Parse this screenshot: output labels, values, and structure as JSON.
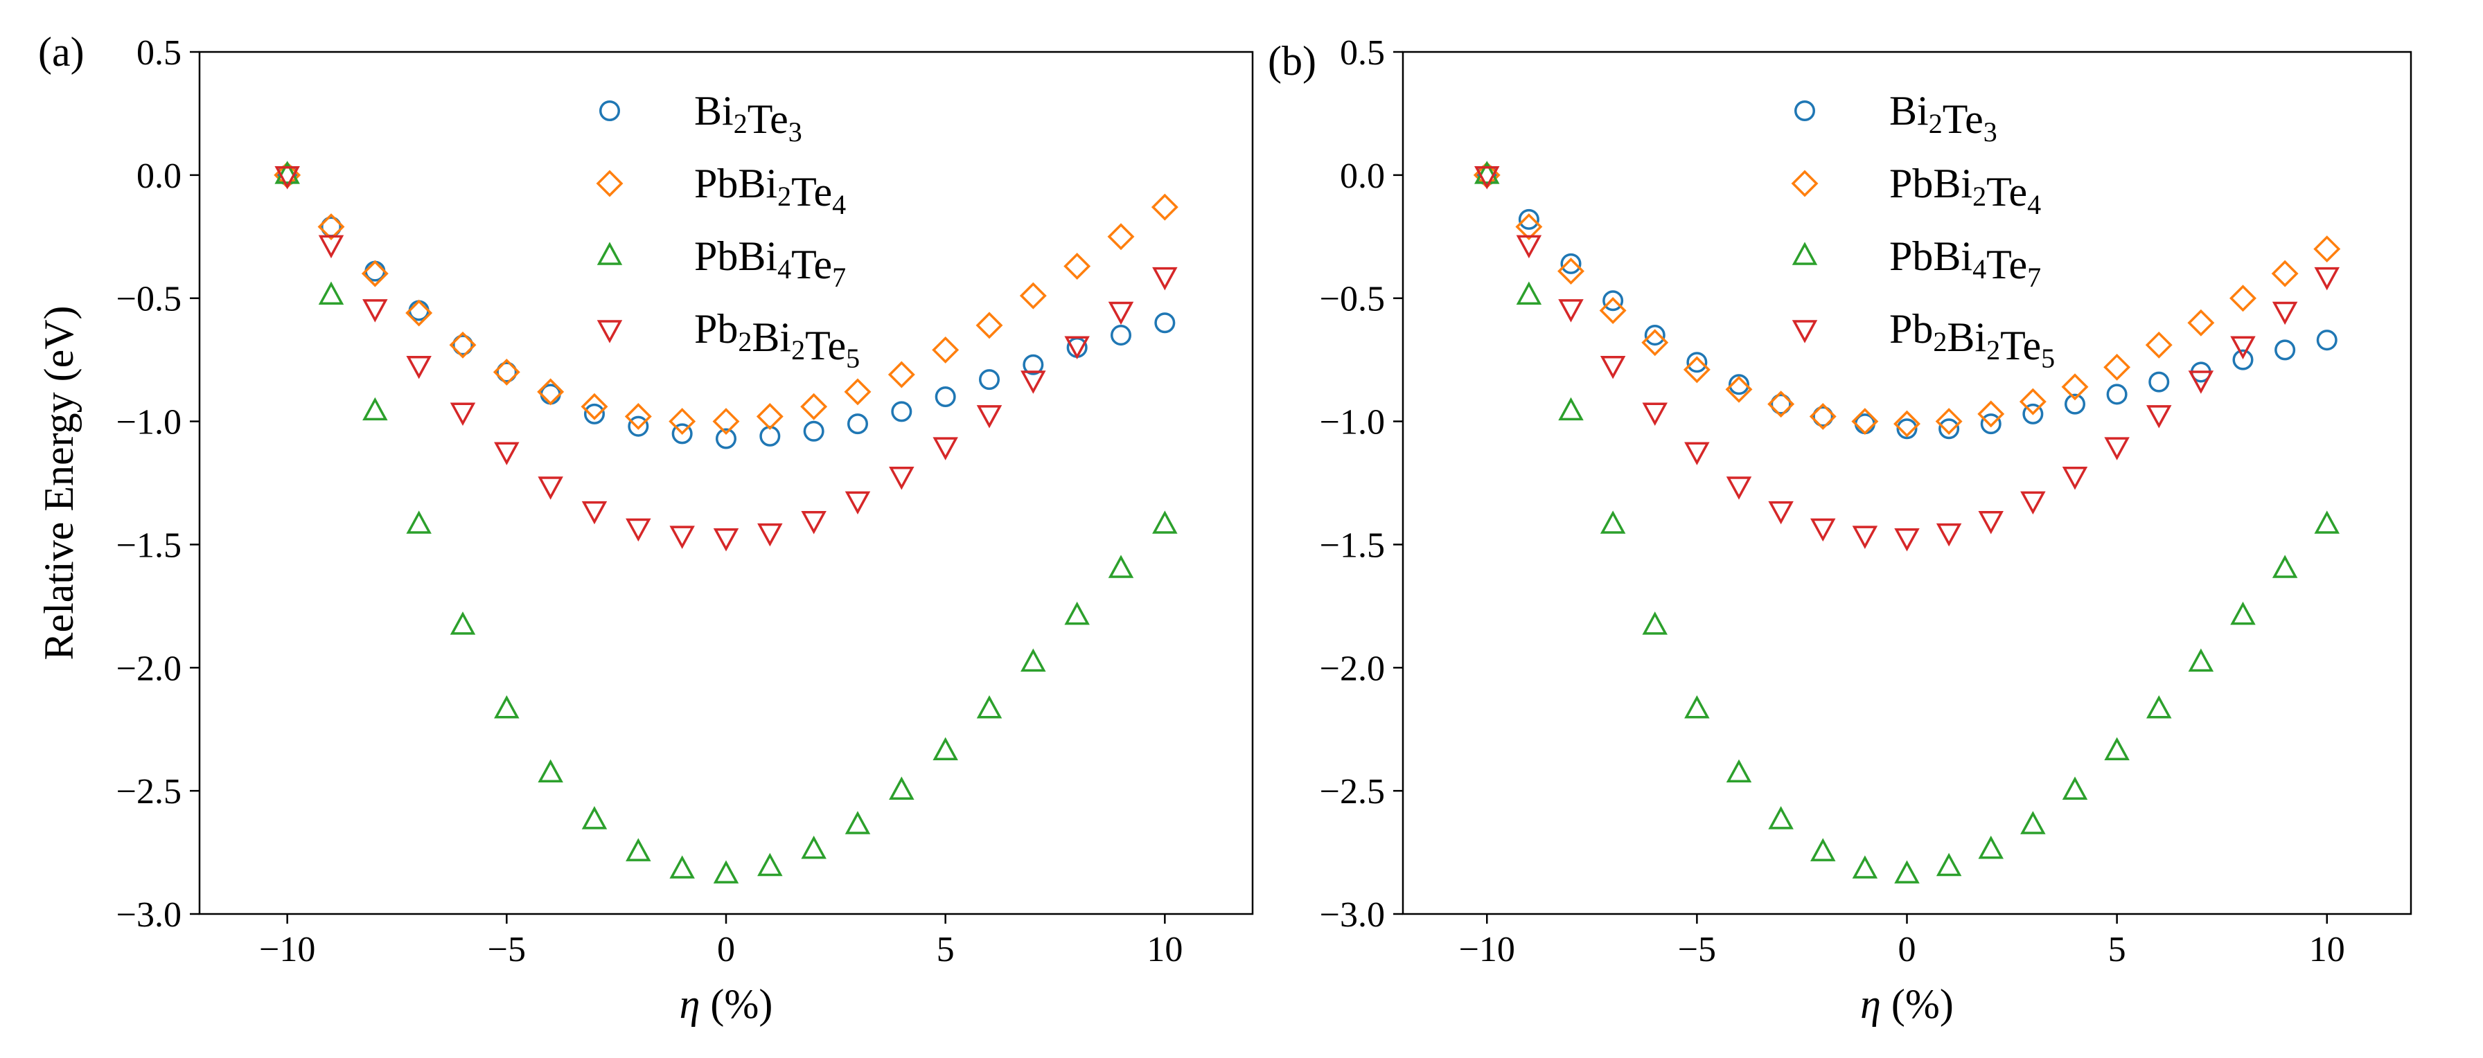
{
  "chart_data": [
    {
      "type": "scatter",
      "panel_label": "(a)",
      "xlabel_symbol": "η",
      "xlabel_unit": "(%)",
      "ylabel": "Relative Energy (eV)",
      "xlim": [
        -12,
        12
      ],
      "ylim": [
        -3.0,
        0.5
      ],
      "x_ticks": [
        -10,
        -5,
        0,
        5,
        10
      ],
      "x_tick_labels": [
        "−10",
        "−5",
        "0",
        "5",
        "10"
      ],
      "y_ticks": [
        0.5,
        0.0,
        -0.5,
        -1.0,
        -1.5,
        -2.0,
        -2.5,
        -3.0
      ],
      "y_tick_labels": [
        "0.5",
        "0.0",
        "−0.5",
        "−1.0",
        "−1.5",
        "−2.0",
        "−2.5",
        "−3.0"
      ],
      "legend_position": "top-center",
      "x": [
        -10,
        -9,
        -8,
        -7,
        -6,
        -5,
        -4,
        -3,
        -2,
        -1,
        0,
        1,
        2,
        3,
        4,
        5,
        6,
        7,
        8,
        9,
        10
      ],
      "series": [
        {
          "name": "Bi2Te3",
          "legend_parts": [
            [
              "Bi",
              ""
            ],
            [
              "2",
              "sub"
            ],
            [
              "Te",
              ""
            ],
            [
              "3",
              "sub"
            ]
          ],
          "color": "#1f77b4",
          "marker": "circle",
          "values": [
            0.0,
            -0.21,
            -0.39,
            -0.55,
            -0.69,
            -0.8,
            -0.89,
            -0.97,
            -1.02,
            -1.05,
            -1.07,
            -1.06,
            -1.04,
            -1.01,
            -0.96,
            -0.9,
            -0.83,
            -0.77,
            -0.7,
            -0.65,
            -0.6
          ]
        },
        {
          "name": "PbBi2Te4",
          "legend_parts": [
            [
              "PbBi",
              ""
            ],
            [
              "2",
              "sub"
            ],
            [
              "Te",
              ""
            ],
            [
              "4",
              "sub"
            ]
          ],
          "color": "#ff7f0e",
          "marker": "diamond",
          "values": [
            0.0,
            -0.21,
            -0.4,
            -0.56,
            -0.69,
            -0.8,
            -0.88,
            -0.94,
            -0.98,
            -1.0,
            -1.0,
            -0.98,
            -0.94,
            -0.88,
            -0.81,
            -0.71,
            -0.61,
            -0.49,
            -0.37,
            -0.25,
            -0.13
          ]
        },
        {
          "name": "PbBi4Te7",
          "legend_parts": [
            [
              "PbBi",
              ""
            ],
            [
              "4",
              "sub"
            ],
            [
              "Te",
              ""
            ],
            [
              "7",
              "sub"
            ]
          ],
          "color": "#2ca02c",
          "marker": "triangle-up",
          "values": [
            0.0,
            -0.49,
            -0.96,
            -1.42,
            -1.83,
            -2.17,
            -2.43,
            -2.62,
            -2.75,
            -2.82,
            -2.84,
            -2.81,
            -2.74,
            -2.64,
            -2.5,
            -2.34,
            -2.17,
            -1.98,
            -1.79,
            -1.6,
            -1.42
          ]
        },
        {
          "name": "Pb2Bi2Te5",
          "legend_parts": [
            [
              "Pb",
              ""
            ],
            [
              "2",
              "sub"
            ],
            [
              "Bi",
              ""
            ],
            [
              "2",
              "sub"
            ],
            [
              "Te",
              ""
            ],
            [
              "5",
              "sub"
            ]
          ],
          "color": "#d62728",
          "marker": "triangle-down",
          "values": [
            0.0,
            -0.28,
            -0.54,
            -0.77,
            -0.96,
            -1.12,
            -1.26,
            -1.36,
            -1.43,
            -1.46,
            -1.47,
            -1.45,
            -1.4,
            -1.32,
            -1.22,
            -1.1,
            -0.97,
            -0.83,
            -0.69,
            -0.55,
            -0.41
          ]
        }
      ]
    },
    {
      "type": "scatter",
      "panel_label": "(b)",
      "xlabel_symbol": "η",
      "xlabel_unit": "(%)",
      "ylabel": "",
      "xlim": [
        -12,
        12
      ],
      "ylim": [
        -3.0,
        0.5
      ],
      "x_ticks": [
        -10,
        -5,
        0,
        5,
        10
      ],
      "x_tick_labels": [
        "−10",
        "−5",
        "0",
        "5",
        "10"
      ],
      "y_ticks": [
        0.5,
        0.0,
        -0.5,
        -1.0,
        -1.5,
        -2.0,
        -2.5,
        -3.0
      ],
      "y_tick_labels": [
        "0.5",
        "0.0",
        "−0.5",
        "−1.0",
        "−1.5",
        "−2.0",
        "−2.5",
        "−3.0"
      ],
      "legend_position": "top-center",
      "x": [
        -10,
        -9,
        -8,
        -7,
        -6,
        -5,
        -4,
        -3,
        -2,
        -1,
        0,
        1,
        2,
        3,
        4,
        5,
        6,
        7,
        8,
        9,
        10
      ],
      "series": [
        {
          "name": "Bi2Te3",
          "legend_parts": [
            [
              "Bi",
              ""
            ],
            [
              "2",
              "sub"
            ],
            [
              "Te",
              ""
            ],
            [
              "3",
              "sub"
            ]
          ],
          "color": "#1f77b4",
          "marker": "circle",
          "values": [
            0.0,
            -0.18,
            -0.36,
            -0.51,
            -0.65,
            -0.76,
            -0.85,
            -0.93,
            -0.98,
            -1.01,
            -1.03,
            -1.03,
            -1.01,
            -0.97,
            -0.93,
            -0.89,
            -0.84,
            -0.8,
            -0.75,
            -0.71,
            -0.67
          ]
        },
        {
          "name": "PbBi2Te4",
          "legend_parts": [
            [
              "PbBi",
              ""
            ],
            [
              "2",
              "sub"
            ],
            [
              "Te",
              ""
            ],
            [
              "4",
              "sub"
            ]
          ],
          "color": "#ff7f0e",
          "marker": "diamond",
          "values": [
            0.0,
            -0.21,
            -0.39,
            -0.55,
            -0.68,
            -0.79,
            -0.87,
            -0.93,
            -0.98,
            -1.0,
            -1.01,
            -1.0,
            -0.97,
            -0.92,
            -0.86,
            -0.78,
            -0.69,
            -0.6,
            -0.5,
            -0.4,
            -0.3
          ]
        },
        {
          "name": "PbBi4Te7",
          "legend_parts": [
            [
              "PbBi",
              ""
            ],
            [
              "4",
              "sub"
            ],
            [
              "Te",
              ""
            ],
            [
              "7",
              "sub"
            ]
          ],
          "color": "#2ca02c",
          "marker": "triangle-up",
          "values": [
            0.0,
            -0.49,
            -0.96,
            -1.42,
            -1.83,
            -2.17,
            -2.43,
            -2.62,
            -2.75,
            -2.82,
            -2.84,
            -2.81,
            -2.74,
            -2.64,
            -2.5,
            -2.34,
            -2.17,
            -1.98,
            -1.79,
            -1.6,
            -1.42
          ]
        },
        {
          "name": "Pb2Bi2Te5",
          "legend_parts": [
            [
              "Pb",
              ""
            ],
            [
              "2",
              "sub"
            ],
            [
              "Bi",
              ""
            ],
            [
              "2",
              "sub"
            ],
            [
              "Te",
              ""
            ],
            [
              "5",
              "sub"
            ]
          ],
          "color": "#d62728",
          "marker": "triangle-down",
          "values": [
            0.0,
            -0.28,
            -0.54,
            -0.77,
            -0.96,
            -1.12,
            -1.26,
            -1.36,
            -1.43,
            -1.46,
            -1.47,
            -1.45,
            -1.4,
            -1.32,
            -1.22,
            -1.1,
            -0.97,
            -0.83,
            -0.69,
            -0.55,
            -0.41
          ]
        }
      ]
    }
  ]
}
